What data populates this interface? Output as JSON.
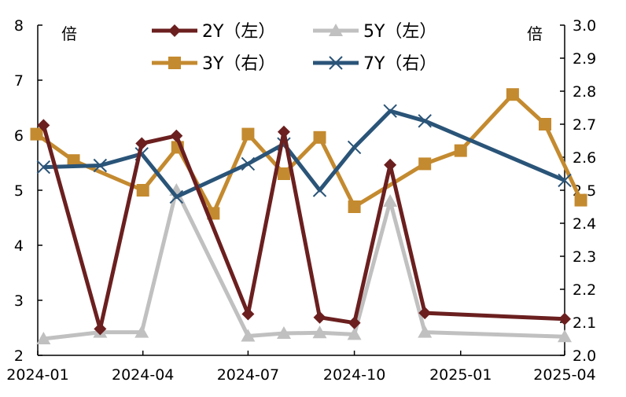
{
  "chart_data": {
    "type": "line",
    "x_ticks": [
      "2024-01",
      "2024-04",
      "2024-07",
      "2024-10",
      "2025-01",
      "2025-04"
    ],
    "left_axis": {
      "unit_label": "倍",
      "ylim": [
        2,
        8
      ],
      "ticks": [
        "2",
        "3",
        "4",
        "5",
        "6",
        "7",
        "8"
      ]
    },
    "right_axis": {
      "unit_label": "倍",
      "ylim": [
        2.0,
        3.0
      ],
      "ticks": [
        "2.0",
        "2.1",
        "2.2",
        "2.3",
        "2.4",
        "2.5",
        "2.6",
        "2.7",
        "2.8",
        "2.9",
        "3.0"
      ]
    },
    "series": [
      {
        "name": "2Y（左）",
        "axis": "left",
        "color": "#6b1f1f",
        "marker": "diamond",
        "points": [
          [
            "2024-01-06",
            6.18
          ],
          [
            "2024-02-24",
            2.48
          ],
          [
            "2024-03-31",
            5.85
          ],
          [
            "2024-04-30",
            5.99
          ],
          [
            "2024-07-01",
            2.75
          ],
          [
            "2024-08-01",
            6.06
          ],
          [
            "2024-09-01",
            2.69
          ],
          [
            "2024-10-01",
            2.59
          ],
          [
            "2024-11-01",
            5.46
          ],
          [
            "2024-12-01",
            2.77
          ],
          [
            "2025-04-01",
            2.66
          ]
        ]
      },
      {
        "name": "5Y（左）",
        "axis": "left",
        "color": "#c0c0c0",
        "marker": "triangle",
        "points": [
          [
            "2024-01-06",
            2.3
          ],
          [
            "2024-02-24",
            2.42
          ],
          [
            "2024-03-31",
            2.42
          ],
          [
            "2024-04-30",
            5.0
          ],
          [
            "2024-07-01",
            2.35
          ],
          [
            "2024-08-01",
            2.4
          ],
          [
            "2024-09-01",
            2.41
          ],
          [
            "2024-10-01",
            2.38
          ],
          [
            "2024-11-01",
            4.8
          ],
          [
            "2024-12-01",
            2.42
          ],
          [
            "2025-04-01",
            2.34
          ]
        ]
      },
      {
        "name": "3Y（右）",
        "axis": "right",
        "color": "#c48a2f",
        "marker": "square",
        "points": [
          [
            "2023-12-31",
            2.67
          ],
          [
            "2024-02-01",
            2.59
          ],
          [
            "2024-04-01",
            2.5
          ],
          [
            "2024-05-01",
            2.63
          ],
          [
            "2024-06-01",
            2.43
          ],
          [
            "2024-07-01",
            2.67
          ],
          [
            "2024-08-01",
            2.55
          ],
          [
            "2024-09-01",
            2.66
          ],
          [
            "2024-10-01",
            2.45
          ],
          [
            "2024-12-01",
            2.58
          ],
          [
            "2025-01-01",
            2.62
          ],
          [
            "2025-02-15",
            2.79
          ],
          [
            "2025-03-15",
            2.7
          ],
          [
            "2025-04-15",
            2.47
          ]
        ]
      },
      {
        "name": "7Y（右）",
        "axis": "right",
        "color": "#2a5478",
        "marker": "x",
        "points": [
          [
            "2024-01-06",
            2.57
          ],
          [
            "2024-02-24",
            2.575
          ],
          [
            "2024-03-31",
            2.61
          ],
          [
            "2024-04-30",
            2.48
          ],
          [
            "2024-07-01",
            2.58
          ],
          [
            "2024-08-01",
            2.64
          ],
          [
            "2024-09-01",
            2.5
          ],
          [
            "2024-10-01",
            2.63
          ],
          [
            "2024-11-01",
            2.74
          ],
          [
            "2024-12-01",
            2.71
          ],
          [
            "2025-04-01",
            2.53
          ]
        ]
      }
    ]
  }
}
